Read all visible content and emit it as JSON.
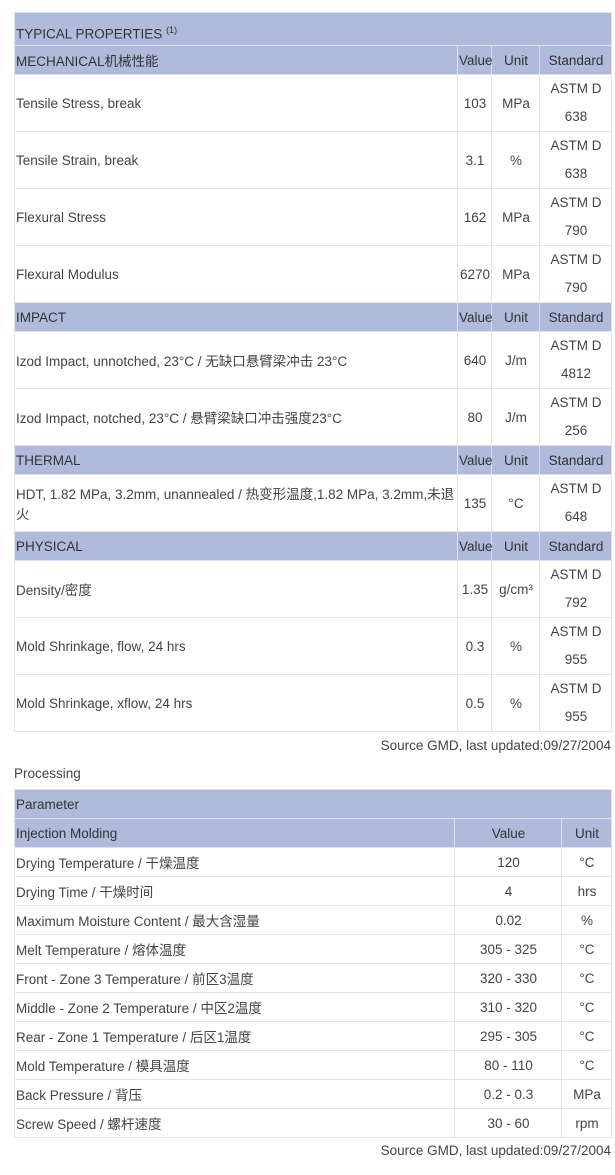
{
  "properties": {
    "title": "TYPICAL PROPERTIES",
    "title_note": "(1)",
    "col_value": "Value",
    "col_unit": "Unit",
    "col_standard": "Standard",
    "sections": [
      {
        "name": "MECHANICAL机械性能",
        "rows": [
          {
            "property": "Tensile Stress, break",
            "value": "103",
            "unit": "MPa",
            "standard": "ASTM D 638"
          },
          {
            "property": "Tensile Strain, break",
            "value": "3.1",
            "unit": "%",
            "standard": "ASTM D 638"
          },
          {
            "property": "Flexural Stress",
            "value": "162",
            "unit": "MPa",
            "standard": "ASTM D 790"
          },
          {
            "property": "Flexural Modulus",
            "value": "6270",
            "unit": "MPa",
            "standard": "ASTM D 790"
          }
        ]
      },
      {
        "name": "IMPACT",
        "rows": [
          {
            "property": "Izod Impact, unnotched, 23°C / 无缺口悬臂梁冲击 23°C",
            "value": "640",
            "unit": "J/m",
            "standard": "ASTM D 4812"
          },
          {
            "property": "Izod Impact, notched, 23°C / 悬臂梁缺口冲击强度23°C",
            "value": "80",
            "unit": "J/m",
            "standard": "ASTM D 256"
          }
        ]
      },
      {
        "name": "THERMAL",
        "rows": [
          {
            "property": "HDT, 1.82 MPa, 3.2mm, unannealed / 热变形温度,1.82 MPa, 3.2mm,未退火",
            "value": "135",
            "unit": "°C",
            "standard": "ASTM D 648"
          }
        ]
      },
      {
        "name": "PHYSICAL",
        "rows": [
          {
            "property": "Density/密度",
            "value": "1.35",
            "unit": "g/cm³",
            "standard": "ASTM D 792"
          },
          {
            "property": "Mold Shrinkage, flow, 24 hrs",
            "value": "0.3",
            "unit": "%",
            "standard": "ASTM D 955"
          },
          {
            "property": "Mold Shrinkage, xflow, 24 hrs",
            "value": "0.5",
            "unit": "%",
            "standard": "ASTM D 955"
          }
        ]
      }
    ],
    "source": "Source GMD, last updated:09/27/2004"
  },
  "processing": {
    "heading": "Processing",
    "title": "Parameter",
    "section": "Injection Molding",
    "col_value": "Value",
    "col_unit": "Unit",
    "rows": [
      {
        "parameter": "Drying Temperature / 干燥温度",
        "value": "120",
        "unit": "°C"
      },
      {
        "parameter": "Drying Time / 干燥时间",
        "value": "4",
        "unit": "hrs"
      },
      {
        "parameter": "Maximum Moisture Content / 最大含湿量",
        "value": "0.02",
        "unit": "%"
      },
      {
        "parameter": "Melt Temperature / 熔体温度",
        "value": "305 - 325",
        "unit": "°C"
      },
      {
        "parameter": "Front - Zone 3 Temperature / 前区3温度",
        "value": "320 - 330",
        "unit": "°C"
      },
      {
        "parameter": "Middle - Zone 2 Temperature / 中区2温度",
        "value": "310 - 320",
        "unit": "°C"
      },
      {
        "parameter": "Rear - Zone 1 Temperature / 后区1温度",
        "value": "295 - 305",
        "unit": "°C"
      },
      {
        "parameter": "Mold Temperature / 模具温度",
        "value": "80 - 110",
        "unit": "°C"
      },
      {
        "parameter": "Back Pressure / 背压",
        "value": "0.2 - 0.3",
        "unit": "MPa"
      },
      {
        "parameter": "Screw Speed / 螺杆速度",
        "value": "30 - 60",
        "unit": "rpm"
      }
    ],
    "source": "Source GMD, last updated:09/27/2004"
  },
  "colors": {
    "header_bg": "#b0bbdc"
  }
}
